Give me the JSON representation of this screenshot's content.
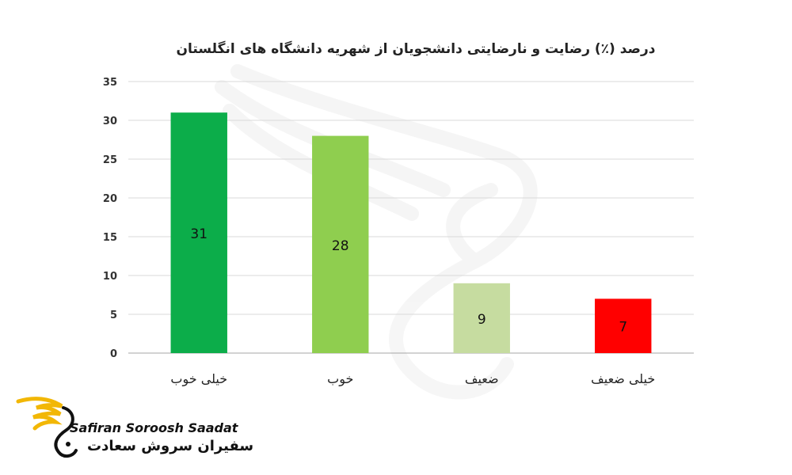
{
  "chart_data": {
    "type": "bar",
    "title": "درصد (٪) رضایت و نارضایتی دانشجویان از شهریه دانشگاه های انگلستان",
    "categories": [
      "خیلی خوب",
      "خوب",
      "ضعیف",
      "خیلی ضعیف"
    ],
    "values": [
      31,
      28,
      9,
      7
    ],
    "data_labels": [
      "31",
      "28",
      "9",
      "7"
    ],
    "colors": [
      "#0cad4a",
      "#8fce4f",
      "#c6dca0",
      "#ff0000"
    ],
    "ylim": [
      0,
      35
    ],
    "yticks": [
      0,
      5,
      10,
      15,
      20,
      25,
      30,
      35
    ],
    "grid": true,
    "legend": "none"
  },
  "logo": {
    "text_en": "Safiran Soroosh Saadat",
    "text_fa": "سفیران سروش سعادت",
    "accent": "#f2b705"
  }
}
